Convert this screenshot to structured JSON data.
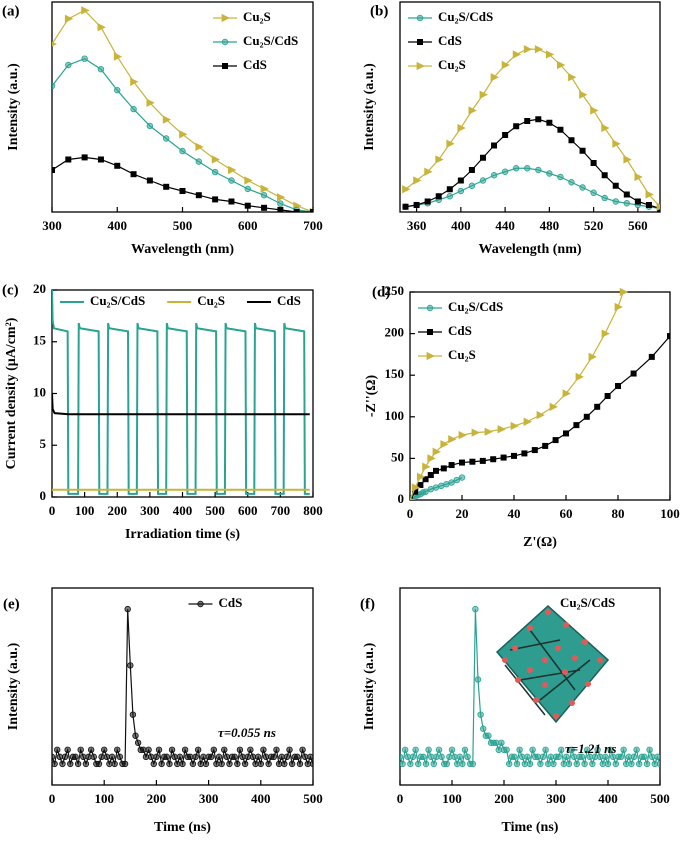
{
  "chart_data": [
    {
      "type": "line",
      "panel_label": "(a)",
      "x_label": "Wavelength (nm)",
      "y_label": "Intensity (a.u.)",
      "legend": "upper right",
      "xlim": [
        300,
        700
      ],
      "xticks": [
        300,
        400,
        500,
        600,
        700
      ],
      "ylim": [
        0,
        100
      ],
      "x": [
        300,
        325,
        350,
        375,
        400,
        425,
        450,
        475,
        500,
        525,
        550,
        575,
        600,
        625,
        650,
        675,
        700
      ],
      "series": [
        {
          "name": "Cu₂S",
          "color": "#c9b43b",
          "marker": "triangle",
          "values": [
            80,
            92,
            96,
            88,
            74,
            62,
            52,
            44,
            37,
            31,
            25,
            20,
            15,
            11,
            7,
            3,
            0
          ]
        },
        {
          "name": "Cu₂S/CdS",
          "color": "#2aa392",
          "marker": "circle",
          "values": [
            60,
            70,
            73,
            68,
            58,
            49,
            41,
            35,
            29,
            24,
            19,
            15,
            11,
            8,
            4,
            1,
            0
          ]
        },
        {
          "name": "CdS",
          "color": "#000000",
          "marker": "square",
          "values": [
            20,
            25,
            26,
            25,
            22,
            18,
            15,
            12,
            10,
            8,
            6,
            5,
            3,
            2,
            1,
            0,
            0
          ]
        }
      ]
    },
    {
      "type": "line",
      "panel_label": "(b)",
      "x_label": "Wavelength (nm)",
      "y_label": "Intensity (a.u.)",
      "legend": "upper left",
      "xlim": [
        345,
        580
      ],
      "xticks": [
        360,
        400,
        440,
        480,
        520,
        560
      ],
      "ylim": [
        0,
        120
      ],
      "x": [
        350,
        360,
        370,
        380,
        390,
        400,
        410,
        420,
        430,
        440,
        450,
        460,
        470,
        480,
        490,
        500,
        510,
        520,
        530,
        540,
        550,
        560,
        570,
        580
      ],
      "series": [
        {
          "name": "Cu₂S/CdS",
          "color": "#2aa392",
          "marker": "circle",
          "values": [
            3,
            4,
            5,
            7,
            9,
            12,
            15,
            18,
            21,
            23,
            25,
            25,
            24,
            22,
            20,
            17,
            14,
            11,
            8,
            6,
            5,
            4,
            3,
            2
          ]
        },
        {
          "name": "CdS",
          "color": "#000000",
          "marker": "square",
          "values": [
            3,
            4,
            6,
            9,
            13,
            18,
            24,
            31,
            38,
            44,
            49,
            52,
            53,
            51,
            47,
            41,
            35,
            28,
            21,
            15,
            10,
            6,
            4,
            2
          ]
        },
        {
          "name": "Cu₂S",
          "color": "#c9b43b",
          "marker": "triangle",
          "values": [
            13,
            18,
            23,
            30,
            39,
            48,
            58,
            67,
            77,
            84,
            90,
            93,
            93,
            90,
            84,
            77,
            67,
            58,
            48,
            39,
            30,
            20,
            10,
            3
          ]
        }
      ]
    },
    {
      "type": "line",
      "panel_label": "(c)",
      "x_label": "Irradiation time (s)",
      "y_label": "Current density (μA/cm²)",
      "legend": "top",
      "xlim": [
        0,
        800
      ],
      "xticks": [
        0,
        100,
        200,
        300,
        400,
        500,
        600,
        700,
        800
      ],
      "ylim": [
        0,
        20
      ],
      "yticks": [
        0,
        5,
        10,
        15,
        20
      ],
      "series": [
        {
          "name": "Cu₂S/CdS",
          "color": "#2aa392",
          "marker": null,
          "x": [
            0,
            2,
            6,
            48,
            50,
            80,
            82,
            85,
            143,
            145,
            170,
            172,
            175,
            233,
            235,
            260,
            262,
            265,
            323,
            325,
            350,
            352,
            355,
            413,
            415,
            440,
            442,
            445,
            503,
            505,
            530,
            532,
            535,
            593,
            595,
            620,
            622,
            625,
            683,
            685,
            710,
            712,
            715,
            773,
            775,
            790
          ],
          "values": [
            20,
            17,
            16.3,
            16,
            0.3,
            0.3,
            16.8,
            16.3,
            16,
            0.3,
            0.3,
            16.8,
            16.3,
            16,
            0.3,
            0.3,
            16.8,
            16.3,
            16,
            0.3,
            0.3,
            16.8,
            16.3,
            16,
            0.3,
            0.3,
            16.8,
            16.3,
            16,
            0.3,
            0.3,
            16.8,
            16.3,
            16,
            0.3,
            0.3,
            16.8,
            16.3,
            16,
            0.3,
            0.3,
            16.8,
            16.3,
            16,
            0.3,
            0.3
          ]
        },
        {
          "name": "Cu₂S",
          "color": "#c9b43b",
          "marker": null,
          "x": [
            0,
            790
          ],
          "values": [
            0.7,
            0.7
          ]
        },
        {
          "name": "CdS",
          "color": "#000000",
          "marker": null,
          "x": [
            0,
            2,
            8,
            50,
            790
          ],
          "values": [
            10,
            8.5,
            8.1,
            8,
            8
          ]
        }
      ]
    },
    {
      "type": "line",
      "panel_label": "(d)",
      "x_label": "Z'(Ω)",
      "y_label": "-Z''(Ω)",
      "legend": "upper left",
      "xlim": [
        0,
        100
      ],
      "xticks": [
        0,
        20,
        40,
        60,
        80,
        100
      ],
      "ylim": [
        0,
        250
      ],
      "yticks": [
        0,
        50,
        100,
        150,
        200,
        250
      ],
      "series": [
        {
          "name": "Cu₂S/CdS",
          "color": "#2aa392",
          "marker": "circle",
          "x": [
            0,
            1,
            2,
            3,
            4,
            5,
            6,
            8,
            10,
            12,
            14,
            16,
            18,
            20
          ],
          "values": [
            0,
            2,
            4,
            6,
            7,
            9,
            10,
            13,
            15,
            17,
            19,
            21,
            24,
            27
          ]
        },
        {
          "name": "CdS",
          "color": "#000000",
          "marker": "square",
          "x": [
            0,
            2,
            4,
            6,
            8,
            10,
            13,
            16,
            20,
            24,
            28,
            32,
            36,
            40,
            44,
            48,
            52,
            56,
            60,
            64,
            68,
            72,
            76,
            80,
            86,
            93,
            100
          ],
          "values": [
            0,
            10,
            18,
            25,
            30,
            35,
            38,
            42,
            45,
            46,
            47,
            49,
            51,
            53,
            56,
            60,
            65,
            72,
            80,
            90,
            100,
            112,
            125,
            137,
            152,
            172,
            197
          ]
        },
        {
          "name": "Cu₂S",
          "color": "#c9b43b",
          "marker": "triangle",
          "x": [
            0,
            2,
            4,
            6,
            8,
            10,
            13,
            16,
            20,
            25,
            30,
            35,
            40,
            45,
            50,
            55,
            60,
            65,
            70,
            75,
            80,
            82
          ],
          "values": [
            0,
            15,
            28,
            40,
            50,
            58,
            67,
            73,
            78,
            81,
            82,
            85,
            89,
            94,
            102,
            112,
            128,
            148,
            172,
            200,
            232,
            250
          ]
        }
      ]
    },
    {
      "type": "line",
      "panel_label": "(e)",
      "x_label": "Time (ns)",
      "y_label": "Intensity (a.u.)",
      "legend": "upper center",
      "annotation": "τ=0.055 ns",
      "xlim": [
        0,
        500
      ],
      "xticks": [
        0,
        100,
        200,
        300,
        400,
        500
      ],
      "ylim": [
        -3,
        25
      ],
      "x": [
        0,
        5,
        10,
        15,
        20,
        25,
        30,
        35,
        40,
        45,
        50,
        55,
        60,
        65,
        70,
        75,
        80,
        85,
        90,
        95,
        100,
        105,
        110,
        115,
        120,
        125,
        130,
        135,
        140,
        145,
        150,
        155,
        160,
        165,
        170,
        175,
        180,
        185,
        190,
        195,
        200,
        205,
        210,
        215,
        220,
        225,
        230,
        235,
        240,
        245,
        250,
        255,
        260,
        265,
        270,
        275,
        280,
        285,
        290,
        295,
        300,
        305,
        310,
        315,
        320,
        325,
        330,
        335,
        340,
        345,
        350,
        355,
        360,
        365,
        370,
        375,
        380,
        385,
        390,
        395,
        400,
        405,
        410,
        415,
        420,
        425,
        430,
        435,
        440,
        445,
        450,
        455,
        460,
        465,
        470,
        475,
        480,
        485,
        490,
        495,
        500
      ],
      "series": [
        {
          "name": "CdS",
          "color": "#111111",
          "marker": "circle",
          "values": [
            1,
            0,
            2,
            1,
            0,
            1,
            2,
            0,
            1,
            1,
            0,
            2,
            1,
            0,
            1,
            2,
            1,
            0,
            0,
            1,
            2,
            1,
            0,
            1,
            0,
            2,
            1,
            0,
            0,
            22,
            14,
            7,
            4,
            3,
            2,
            2,
            1,
            2,
            1,
            0,
            1,
            2,
            0,
            1,
            1,
            0,
            2,
            1,
            0,
            1,
            0,
            2,
            1,
            1,
            0,
            1,
            2,
            0,
            1,
            0,
            1,
            1,
            2,
            0,
            1,
            0,
            2,
            1,
            0,
            1,
            1,
            0,
            2,
            1,
            0,
            1,
            2,
            1,
            0,
            1,
            0,
            2,
            1,
            0,
            1,
            1,
            2,
            0,
            1,
            0,
            1,
            2,
            0,
            1,
            1,
            0,
            2,
            1,
            0,
            1,
            0
          ]
        }
      ]
    },
    {
      "type": "line",
      "panel_label": "(f)",
      "x_label": "Time (ns)",
      "y_label": "Intensity (a.u.)",
      "legend": "upper right",
      "legend_handle": false,
      "annotation": "τ=1.21 ns",
      "xlim": [
        0,
        500
      ],
      "xticks": [
        0,
        100,
        200,
        300,
        400,
        500
      ],
      "ylim": [
        -3,
        25
      ],
      "x": [
        0,
        5,
        10,
        15,
        20,
        25,
        30,
        35,
        40,
        45,
        50,
        55,
        60,
        65,
        70,
        75,
        80,
        85,
        90,
        95,
        100,
        105,
        110,
        115,
        120,
        125,
        130,
        135,
        140,
        145,
        150,
        155,
        160,
        165,
        170,
        175,
        180,
        185,
        190,
        195,
        200,
        205,
        210,
        215,
        220,
        225,
        230,
        235,
        240,
        245,
        250,
        255,
        260,
        265,
        270,
        275,
        280,
        285,
        290,
        295,
        300,
        305,
        310,
        315,
        320,
        325,
        330,
        335,
        340,
        345,
        350,
        355,
        360,
        365,
        370,
        375,
        380,
        385,
        390,
        395,
        400,
        405,
        410,
        415,
        420,
        425,
        430,
        435,
        440,
        445,
        450,
        455,
        460,
        465,
        470,
        475,
        480,
        485,
        490,
        495,
        500
      ],
      "series": [
        {
          "name": "Cu₂S/CdS",
          "color": "#2aa392",
          "marker": "circle",
          "values": [
            1,
            0,
            2,
            1,
            0,
            1,
            2,
            0,
            1,
            1,
            0,
            2,
            1,
            0,
            1,
            2,
            1,
            0,
            0,
            1,
            2,
            1,
            0,
            1,
            0,
            2,
            1,
            0,
            0,
            22,
            12,
            7,
            5,
            4,
            4,
            3,
            3,
            3,
            2,
            3,
            2,
            2,
            0,
            1,
            1,
            0,
            2,
            1,
            0,
            1,
            0,
            2,
            1,
            1,
            0,
            1,
            2,
            0,
            1,
            0,
            1,
            1,
            2,
            0,
            1,
            0,
            2,
            1,
            0,
            1,
            1,
            0,
            2,
            1,
            0,
            1,
            2,
            1,
            0,
            1,
            0,
            2,
            1,
            0,
            1,
            1,
            2,
            0,
            1,
            0,
            1,
            2,
            0,
            1,
            1,
            0,
            2,
            1,
            0,
            1,
            0
          ]
        }
      ]
    }
  ]
}
